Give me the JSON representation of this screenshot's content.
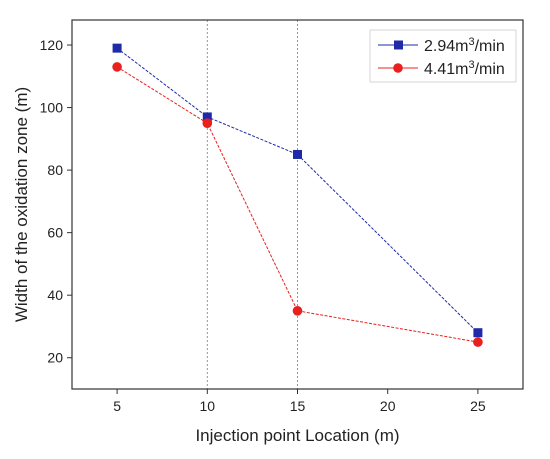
{
  "chart_data": {
    "type": "line",
    "xlabel": "Injection point Location (m)",
    "ylabel": "Width of the oxidation zone (m)",
    "x_ticks": [
      "5",
      "10",
      "15",
      "20",
      "25"
    ],
    "y_ticks": [
      "20",
      "40",
      "60",
      "80",
      "100",
      "120"
    ],
    "x_positions": [
      5,
      10,
      15,
      20,
      25
    ],
    "xlim": [
      2.5,
      27.5
    ],
    "ylim": [
      10,
      128
    ],
    "reference_lines_x": [
      10,
      15
    ],
    "grid": false,
    "legend_position": "top-right",
    "series": [
      {
        "name_base": "2.94m",
        "name_sup": "3",
        "name_tail": "/min",
        "color": "#1f2aa8",
        "marker": "square",
        "x": [
          5,
          10,
          15,
          25
        ],
        "y": [
          119,
          97,
          85,
          28
        ]
      },
      {
        "name_base": "4.41m",
        "name_sup": "3",
        "name_tail": "/min",
        "color": "#e8201e",
        "marker": "circle",
        "x": [
          5,
          10,
          15,
          25
        ],
        "y": [
          113,
          95,
          35,
          25
        ]
      }
    ]
  }
}
